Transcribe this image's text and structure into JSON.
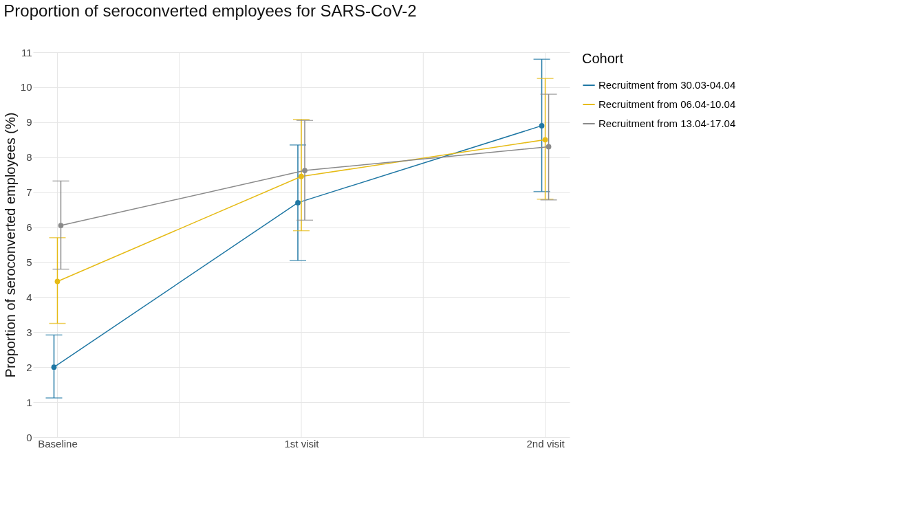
{
  "chart_data": {
    "type": "line",
    "title": "Proportion of seroconverted employees for SARS-CoV-2",
    "ylabel": "Proportion of seroconverted employees (%)",
    "legend_title": "Cohort",
    "categories": [
      "Baseline",
      "1st visit",
      "2nd visit"
    ],
    "series": [
      {
        "name": "Recruitment from 30.03-04.04",
        "color": "#1f77a4",
        "values": [
          2.0,
          6.7,
          8.9
        ],
        "errors": [
          [
            1.12,
            2.92
          ],
          [
            5.05,
            8.35
          ],
          [
            7.02,
            10.8
          ]
        ]
      },
      {
        "name": "Recruitment from 06.04-10.04",
        "color": "#e6bb16",
        "values": [
          4.45,
          7.45,
          8.5
        ],
        "errors": [
          [
            3.25,
            5.7
          ],
          [
            5.9,
            9.08
          ],
          [
            6.8,
            10.25
          ]
        ]
      },
      {
        "name": "Recruitment from 13.04-17.04",
        "color": "#8a8a8a",
        "values": [
          6.05,
          7.62,
          8.3
        ],
        "errors": [
          [
            4.8,
            7.32
          ],
          [
            6.2,
            9.05
          ],
          [
            6.78,
            9.8
          ]
        ]
      }
    ],
    "ylim": [
      0,
      11
    ],
    "yticks": [
      0,
      1,
      2,
      3,
      4,
      5,
      6,
      7,
      8,
      9,
      10,
      11
    ],
    "grid": true,
    "legend": "right",
    "marker": "circle",
    "line_style": "solid"
  }
}
